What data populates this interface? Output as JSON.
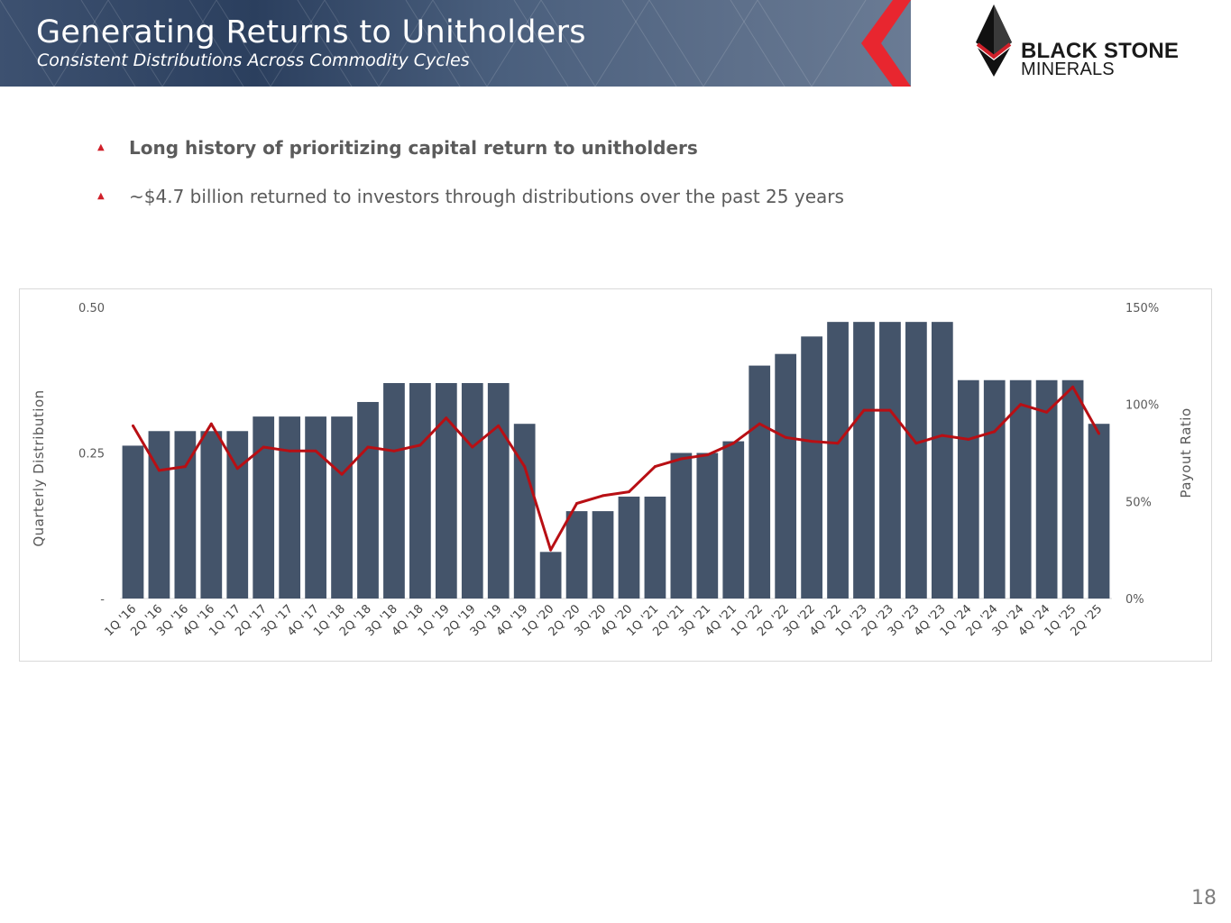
{
  "header": {
    "title": "Generating Returns to Unitholders",
    "subtitle": "Consistent Distributions Across Commodity Cycles"
  },
  "logo": {
    "line1": "BLACK STONE",
    "line2": "MINERALS"
  },
  "bullets": [
    {
      "icon": "triangle-bullet-icon",
      "text": "Long history of prioritizing capital return to unitholders",
      "bold": true
    },
    {
      "icon": "triangle-bullet-icon",
      "text": "~$4.7 billion returned to investors through distributions over the past 25 years",
      "bold": false
    }
  ],
  "colors": {
    "bar": "#44546a",
    "line": "#b80f14",
    "accent": "#d0202a",
    "header": "#3d5170"
  },
  "chart_data": {
    "type": "bar",
    "title": "",
    "ylabel": "Quarterly Distribution",
    "y2label": "Payout Ratio",
    "ylim": [
      0,
      0.5
    ],
    "y2lim": [
      0,
      150
    ],
    "yticks": [
      {
        "value": 0,
        "label": "-"
      },
      {
        "value": 0.25,
        "label": "0.25"
      },
      {
        "value": 0.5,
        "label": "0.50"
      }
    ],
    "y2ticks": [
      {
        "value": 0,
        "label": "0%"
      },
      {
        "value": 50,
        "label": "50%"
      },
      {
        "value": 100,
        "label": "100%"
      },
      {
        "value": 150,
        "label": "150%"
      }
    ],
    "categories": [
      "1Q '16",
      "2Q '16",
      "3Q '16",
      "4Q '16",
      "1Q '17",
      "2Q '17",
      "3Q '17",
      "4Q '17",
      "1Q '18",
      "2Q '18",
      "3Q '18",
      "4Q '18",
      "1Q '19",
      "2Q '19",
      "3Q '19",
      "4Q '19",
      "1Q '20",
      "2Q '20",
      "3Q '20",
      "4Q '20",
      "1Q '21",
      "2Q '21",
      "3Q '21",
      "4Q '21",
      "1Q '22",
      "2Q '22",
      "3Q '22",
      "4Q '22",
      "1Q '23",
      "2Q '23",
      "3Q '23",
      "4Q '23",
      "1Q '24",
      "2Q '24",
      "3Q '24",
      "4Q '24",
      "1Q '25",
      "2Q '25"
    ],
    "series": [
      {
        "name": "Quarterly Distribution",
        "type": "bar",
        "axis": "left",
        "values": [
          0.2625,
          0.2875,
          0.2875,
          0.2875,
          0.2875,
          0.3125,
          0.3125,
          0.3125,
          0.3125,
          0.3375,
          0.37,
          0.37,
          0.37,
          0.37,
          0.37,
          0.3,
          0.08,
          0.15,
          0.15,
          0.175,
          0.175,
          0.25,
          0.25,
          0.27,
          0.4,
          0.42,
          0.45,
          0.475,
          0.475,
          0.475,
          0.475,
          0.475,
          0.375,
          0.375,
          0.375,
          0.375,
          0.375,
          0.3
        ]
      },
      {
        "name": "Payout Ratio",
        "type": "line",
        "axis": "right",
        "values": [
          89,
          66,
          68,
          90,
          67,
          78,
          76,
          76,
          64,
          78,
          76,
          79,
          93,
          78,
          89,
          68,
          25,
          49,
          53,
          55,
          68,
          72,
          74,
          80,
          90,
          83,
          81,
          80,
          97,
          97,
          80,
          84,
          82,
          86,
          100,
          96,
          109,
          85
        ]
      }
    ]
  },
  "page_number": "18"
}
